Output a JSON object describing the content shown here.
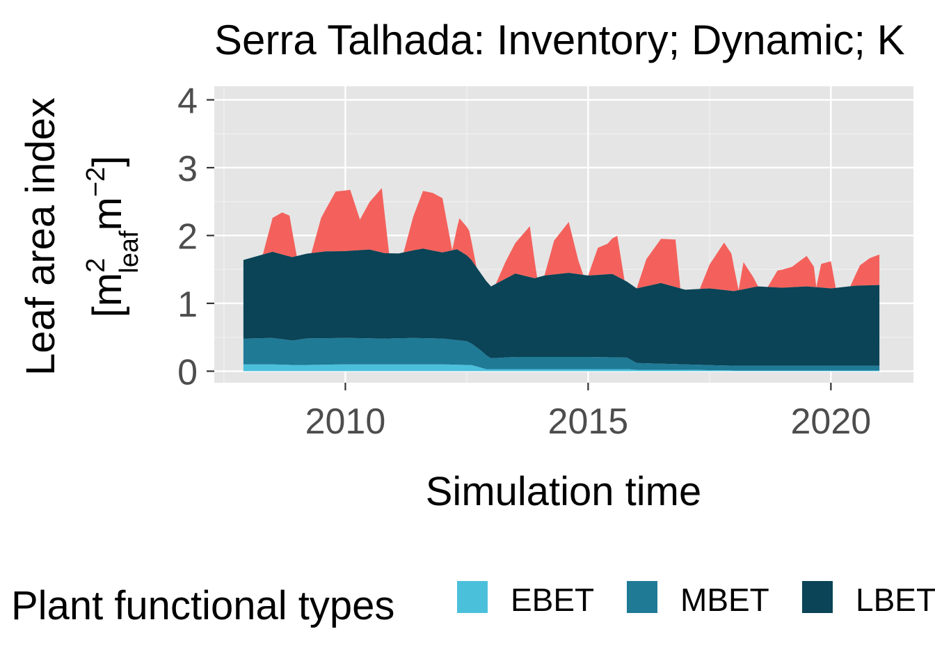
{
  "chart_data": {
    "type": "area",
    "title": "Serra Talhada: Inventory; Dynamic; K",
    "xlabel": "Simulation time",
    "ylabel": {
      "line1": "Leaf area index",
      "bracket_open": "[m",
      "sup1": "2",
      "sub1": "leaf",
      "m2": "m",
      "sup2": "−2",
      "bracket_close": "]"
    },
    "xlim": [
      2007.3,
      2021.7
    ],
    "ylim": [
      -0.17,
      4.2
    ],
    "x_ticks": [
      2010,
      2015,
      2020
    ],
    "y_ticks": [
      0,
      1,
      2,
      3,
      4
    ],
    "grid": true,
    "stacked": true,
    "legend": {
      "title": "Plant functional types",
      "position": "bottom",
      "entries": [
        {
          "label": "EBET",
          "color": "#4bc0db"
        },
        {
          "label": "MBET",
          "color": "#1f7a96"
        },
        {
          "label": "LBET",
          "color": "#0a4456"
        }
      ]
    },
    "series": [
      {
        "name": "EBET",
        "color": "#4bc0db",
        "points": [
          [
            2007.9,
            0.1
          ],
          [
            2008.5,
            0.1
          ],
          [
            2009.0,
            0.09
          ],
          [
            2010.0,
            0.1
          ],
          [
            2011.0,
            0.1
          ],
          [
            2012.0,
            0.1
          ],
          [
            2012.6,
            0.09
          ],
          [
            2012.9,
            0.03
          ],
          [
            2014.0,
            0.03
          ],
          [
            2015.0,
            0.03
          ],
          [
            2015.8,
            0.03
          ],
          [
            2016.0,
            0.02
          ],
          [
            2017.0,
            0.02
          ],
          [
            2018.0,
            0.01
          ],
          [
            2019.0,
            0.01
          ],
          [
            2020.0,
            0.01
          ],
          [
            2021.0,
            0.01
          ]
        ]
      },
      {
        "name": "MBET",
        "color": "#1f7a96",
        "points": [
          [
            2007.9,
            0.38
          ],
          [
            2008.5,
            0.39
          ],
          [
            2008.9,
            0.36
          ],
          [
            2009.2,
            0.39
          ],
          [
            2010.0,
            0.39
          ],
          [
            2010.8,
            0.38
          ],
          [
            2011.4,
            0.39
          ],
          [
            2012.0,
            0.38
          ],
          [
            2012.5,
            0.35
          ],
          [
            2012.8,
            0.25
          ],
          [
            2013.0,
            0.16
          ],
          [
            2013.5,
            0.18
          ],
          [
            2014.0,
            0.18
          ],
          [
            2014.5,
            0.18
          ],
          [
            2015.0,
            0.18
          ],
          [
            2015.8,
            0.17
          ],
          [
            2016.0,
            0.1
          ],
          [
            2017.0,
            0.08
          ],
          [
            2018.0,
            0.07
          ],
          [
            2019.0,
            0.07
          ],
          [
            2020.0,
            0.07
          ],
          [
            2021.0,
            0.07
          ]
        ]
      },
      {
        "name": "LBET",
        "color": "#0a4456",
        "points": [
          [
            2007.9,
            1.16
          ],
          [
            2008.5,
            1.27
          ],
          [
            2008.9,
            1.23
          ],
          [
            2009.2,
            1.25
          ],
          [
            2009.6,
            1.28
          ],
          [
            2010.0,
            1.28
          ],
          [
            2010.5,
            1.31
          ],
          [
            2010.8,
            1.26
          ],
          [
            2011.1,
            1.25
          ],
          [
            2011.6,
            1.32
          ],
          [
            2012.0,
            1.27
          ],
          [
            2012.3,
            1.34
          ],
          [
            2012.6,
            1.23
          ],
          [
            2012.8,
            1.13
          ],
          [
            2013.0,
            1.06
          ],
          [
            2013.5,
            1.23
          ],
          [
            2013.9,
            1.16
          ],
          [
            2014.1,
            1.2
          ],
          [
            2014.6,
            1.24
          ],
          [
            2015.0,
            1.2
          ],
          [
            2015.5,
            1.23
          ],
          [
            2015.8,
            1.12
          ],
          [
            2016.0,
            1.1
          ],
          [
            2016.5,
            1.19
          ],
          [
            2017.0,
            1.1
          ],
          [
            2017.5,
            1.13
          ],
          [
            2018.0,
            1.1
          ],
          [
            2018.5,
            1.17
          ],
          [
            2019.0,
            1.15
          ],
          [
            2019.5,
            1.17
          ],
          [
            2020.0,
            1.14
          ],
          [
            2020.5,
            1.18
          ],
          [
            2021.0,
            1.19
          ]
        ]
      },
      {
        "name": "",
        "color": "#f4615c",
        "points": [
          [
            2007.9,
            0
          ],
          [
            2008.3,
            0
          ],
          [
            2008.5,
            0.5
          ],
          [
            2008.7,
            0.62
          ],
          [
            2008.85,
            0.6
          ],
          [
            2009.0,
            0
          ],
          [
            2009.3,
            0
          ],
          [
            2009.5,
            0.5
          ],
          [
            2009.8,
            0.88
          ],
          [
            2010.1,
            0.9
          ],
          [
            2010.3,
            0.45
          ],
          [
            2010.5,
            0.7
          ],
          [
            2010.75,
            0.95
          ],
          [
            2010.9,
            0
          ],
          [
            2011.2,
            0
          ],
          [
            2011.4,
            0.5
          ],
          [
            2011.6,
            0.85
          ],
          [
            2011.8,
            0.85
          ],
          [
            2012.0,
            0.8
          ],
          [
            2012.2,
            0
          ],
          [
            2012.35,
            0.48
          ],
          [
            2012.55,
            0.4
          ],
          [
            2012.7,
            0
          ],
          [
            2013.1,
            0
          ],
          [
            2013.3,
            0.25
          ],
          [
            2013.6,
            0.55
          ],
          [
            2013.8,
            0.75
          ],
          [
            2013.95,
            0
          ],
          [
            2014.1,
            0
          ],
          [
            2014.3,
            0.5
          ],
          [
            2014.6,
            0.75
          ],
          [
            2014.8,
            0.2
          ],
          [
            2014.9,
            0
          ],
          [
            2015.0,
            0
          ],
          [
            2015.2,
            0.4
          ],
          [
            2015.4,
            0.45
          ],
          [
            2015.6,
            0.6
          ],
          [
            2015.75,
            0
          ],
          [
            2016.0,
            0
          ],
          [
            2016.2,
            0.4
          ],
          [
            2016.5,
            0.65
          ],
          [
            2016.8,
            0.7
          ],
          [
            2016.9,
            0
          ],
          [
            2017.3,
            0
          ],
          [
            2017.5,
            0.35
          ],
          [
            2017.8,
            0.7
          ],
          [
            2017.95,
            0.55
          ],
          [
            2018.1,
            0
          ],
          [
            2018.2,
            0.4
          ],
          [
            2018.4,
            0.15
          ],
          [
            2018.5,
            0
          ],
          [
            2018.7,
            0
          ],
          [
            2018.9,
            0.25
          ],
          [
            2019.2,
            0.3
          ],
          [
            2019.5,
            0.45
          ],
          [
            2019.65,
            0.3
          ],
          [
            2019.7,
            0
          ],
          [
            2019.8,
            0.35
          ],
          [
            2020.0,
            0.4
          ],
          [
            2020.1,
            0
          ],
          [
            2020.4,
            0
          ],
          [
            2020.6,
            0.3
          ],
          [
            2020.8,
            0.4
          ],
          [
            2021.0,
            0.45
          ]
        ]
      }
    ]
  }
}
